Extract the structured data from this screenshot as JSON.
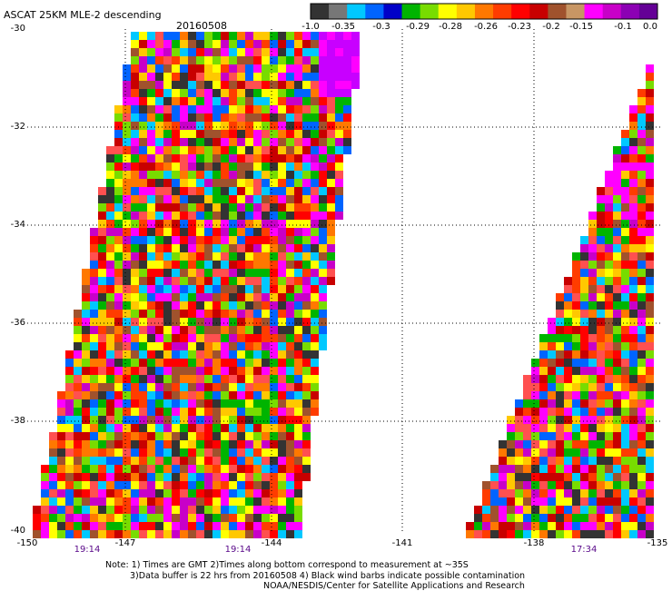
{
  "header": {
    "product": "ASCAT 25KM MLE-2 descending",
    "date": "20160508"
  },
  "colorbar": {
    "labels": [
      "-1.0",
      "-0.35",
      "-0.3",
      "-0.29",
      "-0.28",
      "-0.26",
      "-0.23",
      "-0.2",
      "-0.15",
      "-0.1",
      "0.0"
    ],
    "colors": [
      "#333333",
      "#777777",
      "#00c8ff",
      "#0064ff",
      "#0000c8",
      "#00b400",
      "#78dc00",
      "#ffff00",
      "#ffc800",
      "#ff7800",
      "#ff3c00",
      "#ff0000",
      "#c80000",
      "#a0522d",
      "#c89664",
      "#ff00ff",
      "#c800c8",
      "#8c00b4",
      "#640096"
    ]
  },
  "axes": {
    "latitudes": [
      "-30",
      "-32",
      "-34",
      "-36",
      "-38",
      "-40"
    ],
    "longitudes": [
      "-150",
      "-147",
      "-144",
      "-141",
      "-138",
      "-135"
    ]
  },
  "times": [
    "19:14",
    "19:14",
    "17:34"
  ],
  "notes": {
    "line1": "Note: 1) Times are GMT 2)Times along bottom correspond to measurement at ~35S",
    "line2": "3)Data buffer is 22 hrs from 20160508 4) Black wind barbs indicate possible contamination",
    "line3": "NOAA/NESDIS/Center for Satellite Applications and Research"
  },
  "swath_palette": [
    "#ff0000",
    "#ff3c00",
    "#ff7800",
    "#ffc800",
    "#ffff00",
    "#c80000",
    "#a0522d",
    "#ff00ff",
    "#c800c8",
    "#00c8ff",
    "#0064ff",
    "#00b400",
    "#78dc00",
    "#333333",
    "#ff5050"
  ]
}
